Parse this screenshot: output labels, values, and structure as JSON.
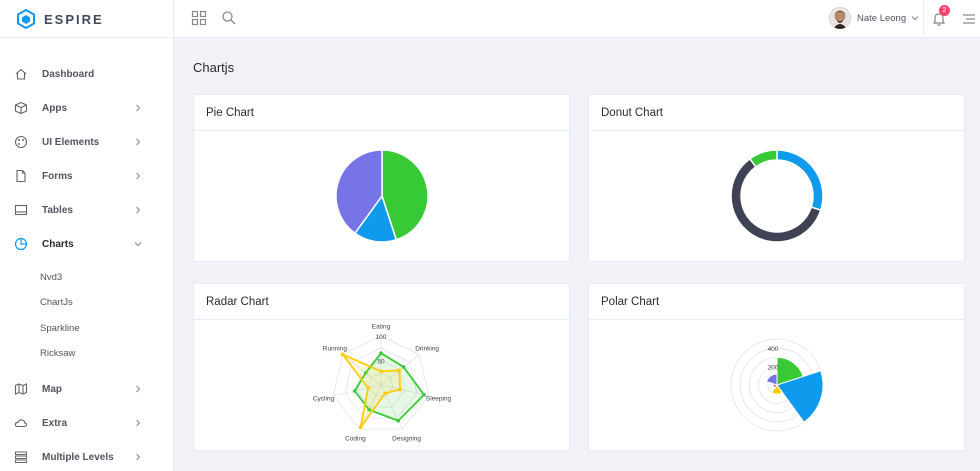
{
  "app": {
    "logo_text": "ESPIRE",
    "user_name": "Nate Leong",
    "notification_count": "2"
  },
  "sidebar": {
    "items": [
      {
        "label": "Dashboard",
        "icon": "home-icon"
      },
      {
        "label": "Apps",
        "icon": "cube-icon"
      },
      {
        "label": "UI Elements",
        "icon": "palette-icon"
      },
      {
        "label": "Forms",
        "icon": "file-icon"
      },
      {
        "label": "Tables",
        "icon": "table-icon"
      },
      {
        "label": "Charts",
        "icon": "pie-chart-icon"
      },
      {
        "label": "Map",
        "icon": "map-icon"
      },
      {
        "label": "Extra",
        "icon": "cloud-icon"
      },
      {
        "label": "Multiple Levels",
        "icon": "list-icon"
      }
    ],
    "charts_submenu": [
      "Nvd3",
      "ChartJs",
      "Sparkline",
      "Ricksaw"
    ]
  },
  "page": {
    "title": "Chartjs"
  },
  "cards": {
    "pie": "Pie Chart",
    "donut": "Donut Chart",
    "radar": "Radar Chart",
    "polar": "Polar Chart"
  },
  "colors": {
    "green": "#37c936",
    "blue": "#0f9aee",
    "purple": "#7774e7",
    "dark": "#3e4252",
    "yellow": "#ffcc00",
    "pink": "#f94c87"
  },
  "chart_data": [
    {
      "type": "pie",
      "values": [
        45,
        15,
        40
      ],
      "colors": [
        "#37c936",
        "#0f9aee",
        "#7774e7"
      ]
    },
    {
      "type": "pie",
      "variant": "donut",
      "values": [
        30,
        60,
        10
      ],
      "colors": [
        "#0f9aee",
        "#3e4252",
        "#37c936"
      ]
    },
    {
      "type": "radar",
      "categories": [
        "Eating",
        "Drinking",
        "Sleeping",
        "Designing",
        "Coding",
        "Cycling",
        "Running"
      ],
      "ticks": [
        "100",
        "50"
      ],
      "series": [
        {
          "values": [
            65,
            59,
            90,
            81,
            56,
            55,
            40
          ],
          "color": "#37c936"
        },
        {
          "values": [
            28,
            48,
            40,
            19,
            96,
            27,
            100
          ],
          "color": "#ffcc00"
        }
      ],
      "rmax": 100
    },
    {
      "type": "polar",
      "values": [
        300,
        500,
        100,
        40,
        120
      ],
      "colors": [
        "#37c936",
        "#0f9aee",
        "#ffcc00",
        "#f94c87",
        "#7774e7"
      ],
      "ticks": [
        "400",
        "200"
      ],
      "rmax": 500
    }
  ]
}
